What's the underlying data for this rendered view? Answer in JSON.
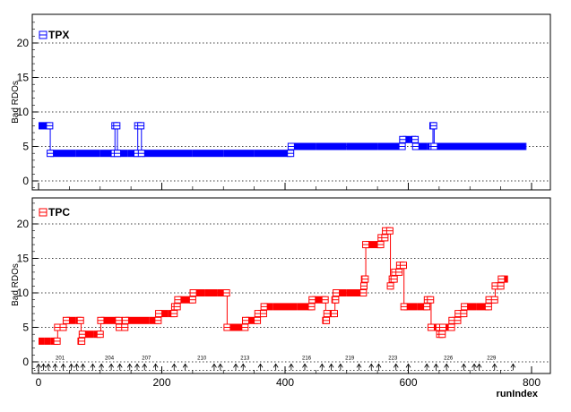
{
  "chart_data": [
    {
      "type": "line",
      "title": "",
      "ylabel": "Bad RDOs",
      "xlabel": "",
      "xlim": [
        0,
        850
      ],
      "ylim": [
        -1,
        24
      ],
      "x_ticks": [
        0,
        200,
        400,
        600,
        800
      ],
      "y_ticks": [
        0,
        5,
        10,
        15,
        20
      ],
      "y_tick_labels": [
        "0",
        "5",
        "10",
        "15",
        "20"
      ],
      "grid": "horizontal dotted",
      "legend": {
        "position": "top-left",
        "entries": [
          "TPX"
        ]
      },
      "series": [
        {
          "name": "TPX",
          "color": "#0000ff",
          "points": [
            [
              0,
              8
            ],
            [
              1,
              8
            ],
            [
              2,
              8
            ],
            [
              3,
              8
            ],
            [
              4,
              8
            ],
            [
              5,
              8
            ],
            [
              6,
              8
            ],
            [
              7,
              8
            ],
            [
              8,
              8
            ],
            [
              9,
              8
            ],
            [
              10,
              8
            ],
            [
              11,
              8
            ],
            [
              12,
              8
            ],
            [
              13,
              8
            ],
            [
              14,
              8
            ],
            [
              15,
              8
            ],
            [
              16,
              8
            ],
            [
              17,
              8
            ],
            [
              18,
              8
            ],
            [
              19,
              4
            ],
            [
              60,
              4
            ],
            [
              100,
              4
            ],
            [
              123,
              4
            ],
            [
              124,
              8
            ],
            [
              125,
              8
            ],
            [
              126,
              8
            ],
            [
              127,
              8
            ],
            [
              128,
              4
            ],
            [
              145,
              4
            ],
            [
              160,
              4
            ],
            [
              161,
              8
            ],
            [
              162,
              8
            ],
            [
              163,
              8
            ],
            [
              164,
              8
            ],
            [
              165,
              8
            ],
            [
              166,
              8
            ],
            [
              167,
              4
            ],
            [
              200,
              4
            ],
            [
              250,
              4
            ],
            [
              300,
              4
            ],
            [
              350,
              4
            ],
            [
              400,
              4
            ],
            [
              409,
              4
            ],
            [
              410,
              5
            ],
            [
              450,
              5
            ],
            [
              500,
              5
            ],
            [
              550,
              5
            ],
            [
              590,
              5
            ],
            [
              591,
              6
            ],
            [
              595,
              6
            ],
            [
              600,
              6
            ],
            [
              603,
              6
            ],
            [
              610,
              6
            ],
            [
              611,
              6
            ],
            [
              612,
              5
            ],
            [
              630,
              5
            ],
            [
              639,
              5
            ],
            [
              640,
              8
            ],
            [
              641,
              8
            ],
            [
              642,
              5
            ],
            [
              680,
              5
            ],
            [
              720,
              5
            ],
            [
              760,
              5
            ],
            [
              790,
              5
            ]
          ]
        }
      ]
    },
    {
      "type": "line",
      "title": "",
      "ylabel": "Bad RDOs",
      "xlabel": "runIndex",
      "xlim": [
        0,
        850
      ],
      "ylim": [
        -1,
        24
      ],
      "x_ticks": [
        0,
        200,
        400,
        600,
        800
      ],
      "x_tick_labels": [
        "0",
        "200",
        "400",
        "600",
        "800"
      ],
      "y_ticks": [
        0,
        5,
        10,
        15,
        20
      ],
      "y_tick_labels": [
        "0",
        "5",
        "10",
        "15",
        "20"
      ],
      "grid": "horizontal dotted",
      "legend": {
        "position": "top-left",
        "entries": [
          "TPC"
        ]
      },
      "annotations": [
        {
          "x": 35,
          "text": "201"
        },
        {
          "x": 115,
          "text": "204"
        },
        {
          "x": 175,
          "text": "207"
        },
        {
          "x": 265,
          "text": "210"
        },
        {
          "x": 335,
          "text": "213"
        },
        {
          "x": 435,
          "text": "216"
        },
        {
          "x": 505,
          "text": "219"
        },
        {
          "x": 575,
          "text": "223"
        },
        {
          "x": 665,
          "text": "226"
        },
        {
          "x": 735,
          "text": "229"
        }
      ],
      "run_markers_x": [
        0,
        8,
        16,
        27,
        40,
        53,
        62,
        72,
        88,
        102,
        118,
        132,
        148,
        160,
        172,
        190,
        220,
        238,
        285,
        295,
        320,
        332,
        360,
        385,
        410,
        432,
        460,
        475,
        490,
        520,
        540,
        552,
        580,
        600,
        630,
        645,
        662,
        690,
        707,
        715,
        740,
        770
      ],
      "series": [
        {
          "name": "TPC",
          "color": "#ff0000",
          "points": [
            [
              0,
              3
            ],
            [
              10,
              3
            ],
            [
              20,
              3
            ],
            [
              30,
              3
            ],
            [
              31,
              5
            ],
            [
              40,
              5
            ],
            [
              45,
              6
            ],
            [
              60,
              6
            ],
            [
              68,
              6
            ],
            [
              69,
              3
            ],
            [
              70,
              3
            ],
            [
              71,
              4
            ],
            [
              90,
              4
            ],
            [
              100,
              4
            ],
            [
              101,
              6
            ],
            [
              120,
              6
            ],
            [
              130,
              6
            ],
            [
              131,
              5
            ],
            [
              135,
              5
            ],
            [
              138,
              5
            ],
            [
              140,
              5
            ],
            [
              141,
              6
            ],
            [
              160,
              6
            ],
            [
              180,
              6
            ],
            [
              194,
              6
            ],
            [
              195,
              7
            ],
            [
              210,
              7
            ],
            [
              220,
              7
            ],
            [
              221,
              8
            ],
            [
              225,
              8
            ],
            [
              226,
              9
            ],
            [
              240,
              9
            ],
            [
              250,
              9
            ],
            [
              251,
              10
            ],
            [
              270,
              10
            ],
            [
              290,
              10
            ],
            [
              305,
              10
            ],
            [
              306,
              5
            ],
            [
              320,
              5
            ],
            [
              335,
              5
            ],
            [
              336,
              6
            ],
            [
              350,
              6
            ],
            [
              355,
              6
            ],
            [
              356,
              7
            ],
            [
              365,
              7
            ],
            [
              366,
              8
            ],
            [
              380,
              8
            ],
            [
              400,
              8
            ],
            [
              420,
              8
            ],
            [
              440,
              8
            ],
            [
              443,
              8
            ],
            [
              444,
              9
            ],
            [
              465,
              9
            ],
            [
              466,
              6
            ],
            [
              467,
              6
            ],
            [
              468,
              7
            ],
            [
              473,
              7
            ],
            [
              480,
              7
            ],
            [
              481,
              9
            ],
            [
              482,
              9
            ],
            [
              483,
              10
            ],
            [
              500,
              10
            ],
            [
              520,
              10
            ],
            [
              527,
              10
            ],
            [
              528,
              11
            ],
            [
              529,
              12
            ],
            [
              530,
              12
            ],
            [
              531,
              17
            ],
            [
              550,
              17
            ],
            [
              555,
              17
            ],
            [
              556,
              18
            ],
            [
              562,
              18
            ],
            [
              563,
              19
            ],
            [
              568,
              19
            ],
            [
              570,
              19
            ],
            [
              571,
              11
            ],
            [
              574,
              12
            ],
            [
              577,
              12
            ],
            [
              578,
              13
            ],
            [
              585,
              13
            ],
            [
              586,
              14
            ],
            [
              592,
              14
            ],
            [
              593,
              8
            ],
            [
              600,
              8
            ],
            [
              615,
              8
            ],
            [
              630,
              8
            ],
            [
              631,
              9
            ],
            [
              636,
              9
            ],
            [
              637,
              5
            ],
            [
              645,
              5
            ],
            [
              650,
              5
            ],
            [
              651,
              4
            ],
            [
              655,
              4
            ],
            [
              656,
              5
            ],
            [
              665,
              5
            ],
            [
              670,
              5
            ],
            [
              671,
              6
            ],
            [
              680,
              6
            ],
            [
              681,
              7
            ],
            [
              690,
              7
            ],
            [
              691,
              8
            ],
            [
              710,
              8
            ],
            [
              730,
              8
            ],
            [
              731,
              9
            ],
            [
              740,
              9
            ],
            [
              741,
              11
            ],
            [
              750,
              11
            ],
            [
              751,
              12
            ],
            [
              760,
              12
            ]
          ]
        }
      ]
    }
  ]
}
